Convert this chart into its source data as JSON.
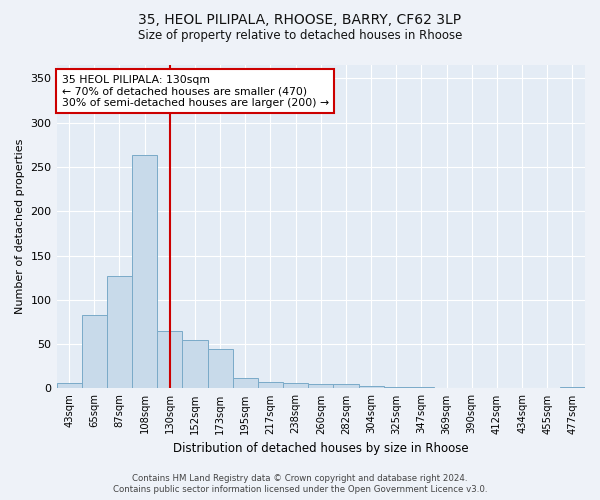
{
  "title_line1": "35, HEOL PILIPALA, RHOOSE, BARRY, CF62 3LP",
  "title_line2": "Size of property relative to detached houses in Rhoose",
  "xlabel": "Distribution of detached houses by size in Rhoose",
  "ylabel": "Number of detached properties",
  "categories": [
    "43sqm",
    "65sqm",
    "87sqm",
    "108sqm",
    "130sqm",
    "152sqm",
    "173sqm",
    "195sqm",
    "217sqm",
    "238sqm",
    "260sqm",
    "282sqm",
    "304sqm",
    "325sqm",
    "347sqm",
    "369sqm",
    "390sqm",
    "412sqm",
    "434sqm",
    "455sqm",
    "477sqm"
  ],
  "values": [
    6,
    83,
    127,
    263,
    65,
    55,
    45,
    12,
    7,
    6,
    5,
    5,
    3,
    2,
    2,
    1,
    0,
    0,
    0,
    0,
    2
  ],
  "bar_color": "#c8daea",
  "bar_edge_color": "#7aaac8",
  "vline_x": 4,
  "vline_color": "#cc0000",
  "annotation_text": "35 HEOL PILIPALA: 130sqm\n← 70% of detached houses are smaller (470)\n30% of semi-detached houses are larger (200) →",
  "annotation_box_color": "#ffffff",
  "annotation_box_edge": "#cc0000",
  "ylim": [
    0,
    365
  ],
  "yticks": [
    0,
    50,
    100,
    150,
    200,
    250,
    300,
    350
  ],
  "footer_line1": "Contains HM Land Registry data © Crown copyright and database right 2024.",
  "footer_line2": "Contains public sector information licensed under the Open Government Licence v3.0.",
  "bg_color": "#eef2f8",
  "plot_bg_color": "#e4ecf5"
}
